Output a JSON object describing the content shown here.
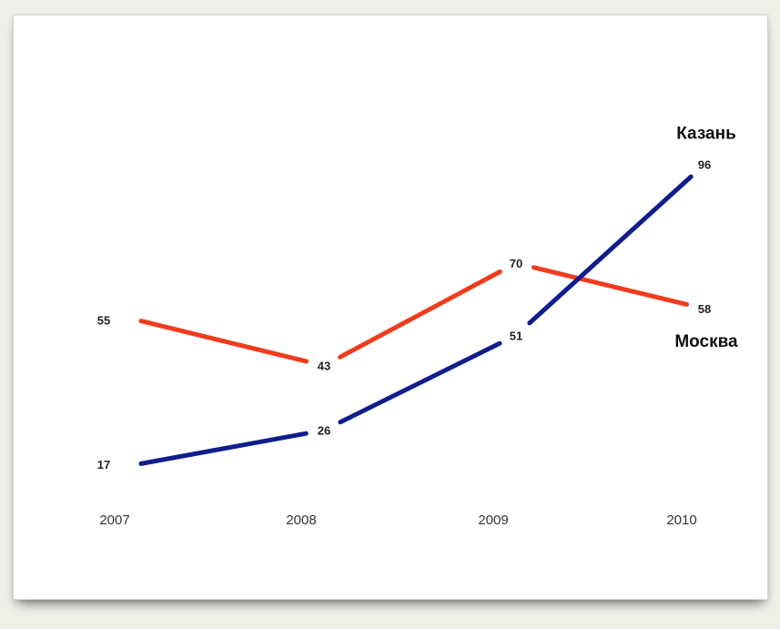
{
  "chart_data": {
    "type": "line",
    "x": [
      "2007",
      "2008",
      "2009",
      "2010"
    ],
    "series": [
      {
        "name": "Москва",
        "values": [
          55,
          43,
          70,
          58
        ],
        "color": "#f03c1e"
      },
      {
        "name": "Казань",
        "values": [
          17,
          26,
          51,
          96
        ],
        "color": "#101d8c"
      }
    ],
    "ylim": [
      0,
      100
    ],
    "grid": false,
    "legend": "series labels placed next to last points"
  }
}
